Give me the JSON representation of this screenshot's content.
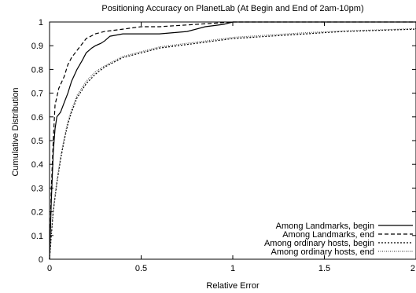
{
  "chart_data": {
    "type": "line",
    "title": "Positioning Accuracy on PlanetLab (At Begin and End of 2am-10pm)",
    "xlabel": "Relative Error",
    "ylabel": "Cumulative Distribution",
    "xlim": [
      0,
      2
    ],
    "ylim": [
      0,
      1
    ],
    "xticks": [
      0,
      0.5,
      1,
      1.5,
      2
    ],
    "yticks": [
      0,
      0.1,
      0.2,
      0.3,
      0.4,
      0.5,
      0.6,
      0.7,
      0.8,
      0.9,
      1
    ],
    "legend_position": "bottom-right",
    "grid": false,
    "series": [
      {
        "name": "Among Landmarks, begin",
        "style": "solid",
        "color": "#000000",
        "points": [
          [
            0,
            0
          ],
          [
            0.01,
            0.25
          ],
          [
            0.02,
            0.45
          ],
          [
            0.03,
            0.55
          ],
          [
            0.04,
            0.6
          ],
          [
            0.06,
            0.62
          ],
          [
            0.08,
            0.66
          ],
          [
            0.1,
            0.7
          ],
          [
            0.12,
            0.75
          ],
          [
            0.15,
            0.8
          ],
          [
            0.18,
            0.84
          ],
          [
            0.2,
            0.87
          ],
          [
            0.23,
            0.89
          ],
          [
            0.25,
            0.9
          ],
          [
            0.28,
            0.91
          ],
          [
            0.3,
            0.92
          ],
          [
            0.33,
            0.94
          ],
          [
            0.4,
            0.95
          ],
          [
            0.5,
            0.95
          ],
          [
            0.6,
            0.95
          ],
          [
            0.75,
            0.96
          ],
          [
            0.85,
            0.98
          ],
          [
            0.95,
            0.99
          ],
          [
            1.0,
            1.0
          ],
          [
            2.0,
            1.0
          ]
        ]
      },
      {
        "name": "Among Landmarks, end",
        "style": "dashed",
        "color": "#000000",
        "points": [
          [
            0,
            0
          ],
          [
            0.01,
            0.3
          ],
          [
            0.02,
            0.5
          ],
          [
            0.03,
            0.65
          ],
          [
            0.05,
            0.72
          ],
          [
            0.08,
            0.77
          ],
          [
            0.1,
            0.82
          ],
          [
            0.12,
            0.85
          ],
          [
            0.15,
            0.88
          ],
          [
            0.18,
            0.91
          ],
          [
            0.2,
            0.93
          ],
          [
            0.25,
            0.95
          ],
          [
            0.3,
            0.96
          ],
          [
            0.4,
            0.97
          ],
          [
            0.5,
            0.98
          ],
          [
            0.6,
            0.98
          ],
          [
            0.8,
            0.99
          ],
          [
            1.0,
            1.0
          ],
          [
            2.0,
            1.0
          ]
        ]
      },
      {
        "name": "Among ordinary hosts, begin",
        "style": "dotted",
        "color": "#000000",
        "points": [
          [
            0,
            0
          ],
          [
            0.01,
            0.1
          ],
          [
            0.02,
            0.2
          ],
          [
            0.04,
            0.32
          ],
          [
            0.06,
            0.42
          ],
          [
            0.08,
            0.5
          ],
          [
            0.1,
            0.57
          ],
          [
            0.12,
            0.62
          ],
          [
            0.15,
            0.68
          ],
          [
            0.2,
            0.74
          ],
          [
            0.25,
            0.78
          ],
          [
            0.3,
            0.81
          ],
          [
            0.35,
            0.83
          ],
          [
            0.4,
            0.85
          ],
          [
            0.5,
            0.87
          ],
          [
            0.6,
            0.89
          ],
          [
            0.7,
            0.9
          ],
          [
            0.8,
            0.91
          ],
          [
            1.0,
            0.93
          ],
          [
            1.2,
            0.94
          ],
          [
            1.4,
            0.95
          ],
          [
            1.6,
            0.96
          ],
          [
            1.8,
            0.965
          ],
          [
            2.0,
            0.97
          ]
        ]
      },
      {
        "name": "Among ordinary hosts, end",
        "style": "finedotted",
        "color": "#555555",
        "points": [
          [
            0,
            0
          ],
          [
            0.01,
            0.11
          ],
          [
            0.02,
            0.21
          ],
          [
            0.04,
            0.33
          ],
          [
            0.06,
            0.43
          ],
          [
            0.08,
            0.51
          ],
          [
            0.1,
            0.58
          ],
          [
            0.12,
            0.63
          ],
          [
            0.15,
            0.69
          ],
          [
            0.2,
            0.75
          ],
          [
            0.25,
            0.79
          ],
          [
            0.3,
            0.815
          ],
          [
            0.35,
            0.835
          ],
          [
            0.4,
            0.855
          ],
          [
            0.5,
            0.875
          ],
          [
            0.6,
            0.895
          ],
          [
            0.7,
            0.905
          ],
          [
            0.8,
            0.915
          ],
          [
            1.0,
            0.935
          ],
          [
            1.2,
            0.945
          ],
          [
            1.4,
            0.955
          ],
          [
            1.6,
            0.962
          ],
          [
            1.8,
            0.967
          ],
          [
            2.0,
            0.972
          ]
        ]
      }
    ]
  }
}
